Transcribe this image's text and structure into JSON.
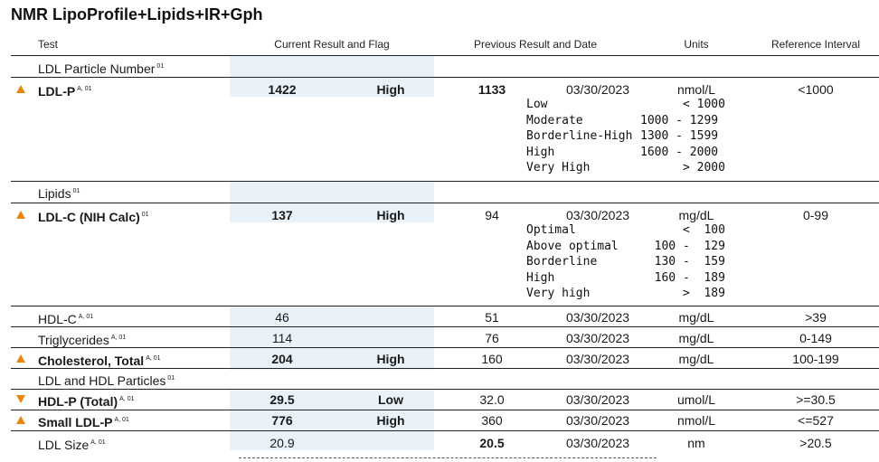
{
  "title": "NMR LipoProfile+Lipids+IR+Gph",
  "headers": {
    "test": "Test",
    "current": "Current Result and Flag",
    "previous": "Previous Result and Date",
    "units": "Units",
    "reference": "Reference Interval"
  },
  "sections": {
    "ldl_particle": {
      "label": "LDL Particle Number",
      "sup": "01"
    },
    "lipids": {
      "label": "Lipids",
      "sup": "01"
    },
    "ldl_hdl": {
      "label": "LDL and HDL Particles",
      "sup": "01"
    }
  },
  "rows": {
    "ldlp": {
      "name": "LDL-P",
      "sup": "A, 01",
      "value": "1422",
      "flag": "High",
      "prev": "1133",
      "date": "03/30/2023",
      "units": "nmol/L",
      "ref": "<1000"
    },
    "ldlc": {
      "name": "LDL-C (NIH Calc)",
      "sup": "01",
      "value": "137",
      "flag": "High",
      "prev": "94",
      "date": "03/30/2023",
      "units": "mg/dL",
      "ref": "0-99"
    },
    "hdlc": {
      "name": "HDL-C",
      "sup": "A, 01",
      "value": "46",
      "flag": "",
      "prev": "51",
      "date": "03/30/2023",
      "units": "mg/dL",
      "ref": ">39"
    },
    "trig": {
      "name": "Triglycerides",
      "sup": "A, 01",
      "value": "114",
      "flag": "",
      "prev": "76",
      "date": "03/30/2023",
      "units": "mg/dL",
      "ref": "0-149"
    },
    "chol": {
      "name": "Cholesterol, Total",
      "sup": "A, 01",
      "value": "204",
      "flag": "High",
      "prev": "160",
      "date": "03/30/2023",
      "units": "mg/dL",
      "ref": "100-199"
    },
    "hdlp": {
      "name": "HDL-P (Total)",
      "sup": "A, 01",
      "value": "29.5",
      "flag": "Low",
      "prev": "32.0",
      "date": "03/30/2023",
      "units": "umol/L",
      "ref": ">=30.5"
    },
    "sldlp": {
      "name": "Small LDL-P",
      "sup": "A, 01",
      "value": "776",
      "flag": "High",
      "prev": "360",
      "date": "03/30/2023",
      "units": "nmol/L",
      "ref": "<=527"
    },
    "ldlsize": {
      "name": "LDL Size",
      "sup": "A, 01",
      "value": "20.9",
      "flag": "",
      "prev": "20.5",
      "date": "03/30/2023",
      "units": "nm",
      "ref": ">20.5"
    }
  },
  "ldlp_bands": [
    {
      "label": "Low",
      "range": "      < 1000"
    },
    {
      "label": "Moderate",
      "range": "1000 - 1299"
    },
    {
      "label": "Borderline-High",
      "range": "1300 - 1599"
    },
    {
      "label": "High",
      "range": "1600 - 2000"
    },
    {
      "label": "Very High",
      "range": "      > 2000"
    }
  ],
  "ldlc_bands": [
    {
      "label": "Optimal",
      "range": "      <  100"
    },
    {
      "label": "Above optimal",
      "range": "  100 -  129"
    },
    {
      "label": "Borderline",
      "range": "  130 -  159"
    },
    {
      "label": "High",
      "range": "  160 -  189"
    },
    {
      "label": "Very high",
      "range": "      >  189"
    }
  ],
  "colors": {
    "flag_arrow": "#e8860c",
    "current_column_bg": "#eaf2f9"
  },
  "icons": {
    "high": "up-triangle-icon",
    "low": "down-triangle-icon"
  }
}
